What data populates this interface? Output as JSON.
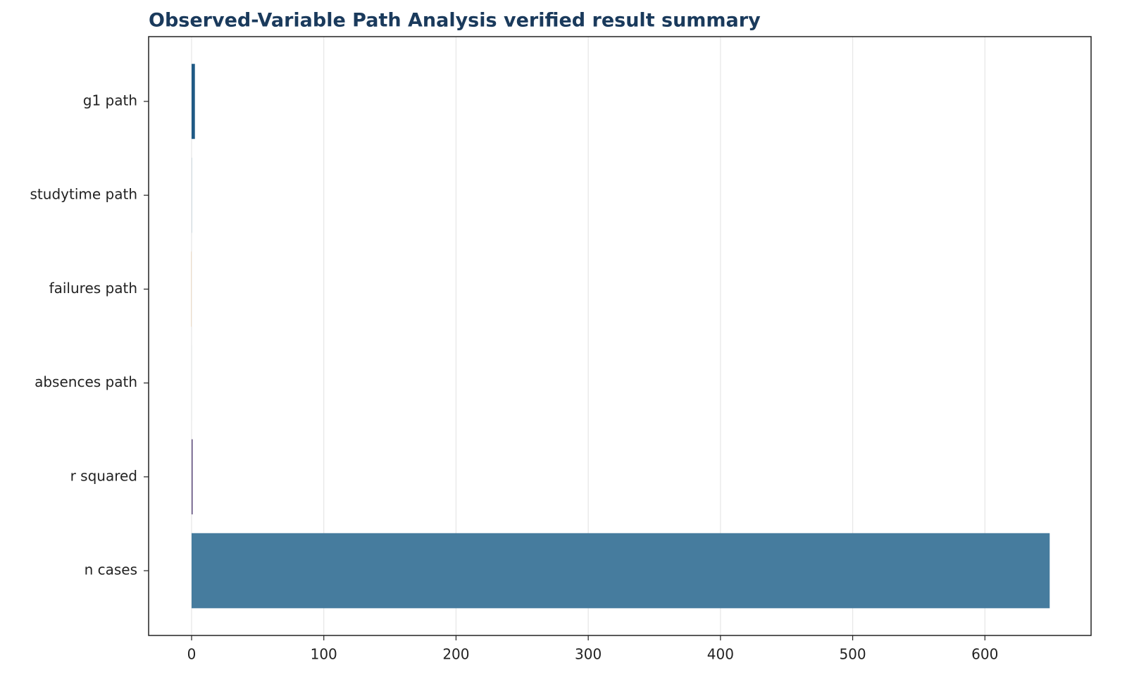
{
  "chart_data": {
    "type": "barh",
    "title": "Observed-Variable Path Analysis verified result summary",
    "categories": [
      "g1 path",
      "studytime path",
      "failures path",
      "absences path",
      "r squared",
      "n cases"
    ],
    "values": [
      2.5,
      0.1,
      -0.3,
      0.02,
      0.8,
      649
    ],
    "colors": [
      "#1f5a85",
      "#3b7a9e",
      "#e8c9a0",
      "#8fb4a0",
      "#5c4a7a",
      "#467c9e"
    ],
    "xlim": [
      -32.5,
      680.3
    ],
    "xticks": [
      0,
      100,
      200,
      300,
      400,
      500,
      600
    ],
    "grid": true
  }
}
